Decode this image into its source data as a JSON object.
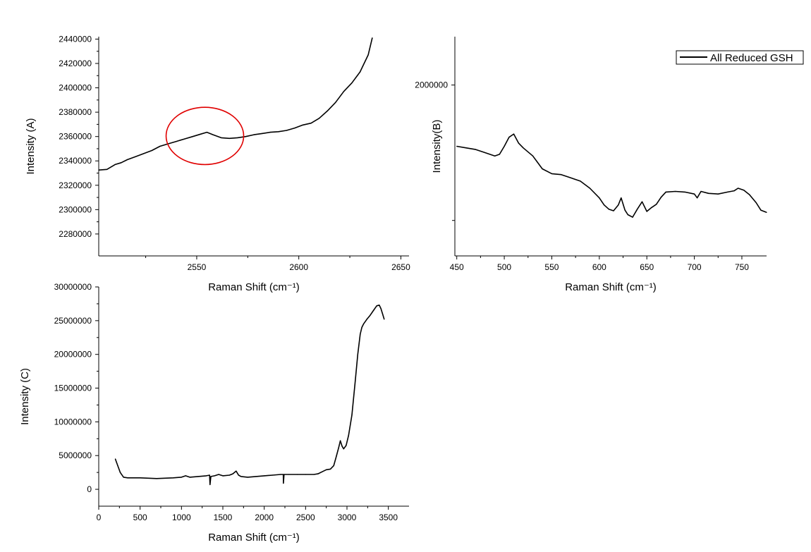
{
  "legend": {
    "label": "All Reduced GSH"
  },
  "chart_data": [
    {
      "id": "A",
      "type": "line",
      "xlabel": "Raman Shift (cm⁻¹)",
      "ylabel": "Intensity (A)",
      "xlim": [
        2502,
        2654
      ],
      "ylim": [
        2262000,
        2442000
      ],
      "xticks": [
        2550,
        2600,
        2650
      ],
      "yticks": [
        2280000,
        2300000,
        2320000,
        2340000,
        2360000,
        2380000,
        2400000,
        2420000,
        2440000
      ],
      "annotation": {
        "type": "circle",
        "color": "#e00000",
        "cx": 2554,
        "cy": 2360500,
        "rx": 19,
        "ry": 23500
      },
      "series": [
        {
          "x": [
            2502,
            2506,
            2510,
            2513,
            2516,
            2520,
            2524,
            2528,
            2532,
            2536,
            2540,
            2544,
            2548,
            2552,
            2555,
            2558,
            2562,
            2566,
            2570,
            2574,
            2578,
            2582,
            2586,
            2590,
            2594,
            2598,
            2602,
            2606,
            2610,
            2614,
            2618,
            2622,
            2626,
            2630,
            2634,
            2636
          ],
          "y": [
            2332500,
            2333000,
            2337000,
            2338500,
            2341000,
            2343500,
            2346000,
            2348500,
            2352000,
            2354000,
            2356000,
            2358000,
            2360000,
            2362000,
            2363500,
            2361500,
            2359000,
            2358500,
            2359000,
            2360000,
            2361500,
            2362500,
            2363500,
            2364000,
            2365000,
            2367000,
            2369500,
            2371000,
            2375000,
            2381000,
            2388000,
            2397000,
            2404000,
            2413000,
            2427000,
            2441000
          ]
        }
      ]
    },
    {
      "id": "B",
      "type": "line",
      "xlabel": "Raman Shift (cm⁻¹)",
      "ylabel": "Intensity(B)",
      "xlim": [
        448,
        776
      ],
      "ylim": [
        1470000,
        2150000
      ],
      "xticks": [
        450,
        500,
        550,
        600,
        650,
        700,
        750
      ],
      "yticks": [
        2000000
      ],
      "extra_ytick_marks": [
        1580000
      ],
      "series": [
        {
          "name": "All Reduced GSH",
          "x": [
            450,
            460,
            470,
            480,
            490,
            495,
            500,
            505,
            510,
            515,
            520,
            530,
            540,
            550,
            560,
            570,
            580,
            590,
            600,
            605,
            610,
            615,
            620,
            623,
            627,
            630,
            635,
            640,
            645,
            650,
            655,
            660,
            665,
            670,
            680,
            690,
            700,
            703,
            707,
            715,
            725,
            735,
            742,
            746,
            752,
            758,
            765,
            770,
            776
          ],
          "y": [
            1810000,
            1805000,
            1800000,
            1790000,
            1780000,
            1785000,
            1810000,
            1838000,
            1848000,
            1820000,
            1805000,
            1780000,
            1740000,
            1725000,
            1722000,
            1712000,
            1702000,
            1680000,
            1650000,
            1628000,
            1615000,
            1610000,
            1628000,
            1650000,
            1612000,
            1598000,
            1590000,
            1615000,
            1638000,
            1608000,
            1620000,
            1630000,
            1652000,
            1668000,
            1670000,
            1668000,
            1662000,
            1650000,
            1670000,
            1664000,
            1662000,
            1668000,
            1672000,
            1680000,
            1674000,
            1660000,
            1635000,
            1612000,
            1605000
          ]
        }
      ]
    },
    {
      "id": "C",
      "type": "line",
      "xlabel": "Raman Shift (cm⁻¹)",
      "ylabel": "Intensity (C)",
      "xlim": [
        0,
        3750
      ],
      "ylim": [
        -2500000,
        30000000
      ],
      "xticks": [
        0,
        500,
        1000,
        1500,
        2000,
        2500,
        3000,
        3500
      ],
      "yticks": [
        0,
        5000000,
        10000000,
        15000000,
        20000000,
        25000000,
        30000000
      ],
      "series": [
        {
          "x": [
            200,
            230,
            260,
            300,
            350,
            400,
            500,
            700,
            900,
            1000,
            1050,
            1100,
            1200,
            1300,
            1340,
            1345,
            1355,
            1400,
            1450,
            1500,
            1580,
            1620,
            1660,
            1690,
            1720,
            1800,
            1900,
            2000,
            2100,
            2200,
            2230,
            2232,
            2240,
            2300,
            2400,
            2500,
            2600,
            2650,
            2700,
            2750,
            2800,
            2840,
            2870,
            2900,
            2920,
            2940,
            2960,
            2990,
            3020,
            3060,
            3100,
            3130,
            3160,
            3180,
            3200,
            3240,
            3280,
            3320,
            3360,
            3390,
            3410,
            3430,
            3450
          ],
          "y": [
            4500000,
            3500000,
            2500000,
            1800000,
            1700000,
            1700000,
            1700000,
            1600000,
            1700000,
            1800000,
            2000000,
            1800000,
            1900000,
            2000000,
            2100000,
            700000,
            1900000,
            2000000,
            2200000,
            2000000,
            2100000,
            2300000,
            2700000,
            2100000,
            1900000,
            1800000,
            1900000,
            2000000,
            2100000,
            2200000,
            2200000,
            900000,
            2200000,
            2200000,
            2200000,
            2200000,
            2200000,
            2300000,
            2600000,
            2900000,
            3000000,
            3500000,
            4800000,
            6200000,
            7200000,
            6400000,
            6000000,
            6500000,
            8000000,
            11000000,
            16000000,
            20000000,
            23000000,
            24000000,
            24500000,
            25200000,
            25800000,
            26500000,
            27200000,
            27300000,
            26800000,
            26000000,
            25200000
          ]
        }
      ]
    }
  ]
}
